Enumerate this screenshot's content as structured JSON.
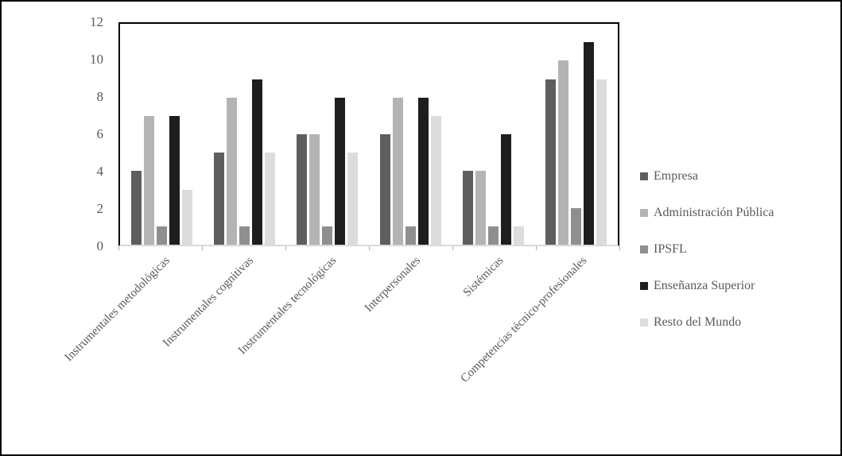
{
  "chart_data": {
    "type": "bar",
    "title": "",
    "categories": [
      "Instrumentales metodológicas",
      "Instrumentales cognitivas",
      "Instrumentales tecnológicas",
      "Interpersonales",
      "Sistémicas",
      "Competencias técnico-profesionales"
    ],
    "series": [
      {
        "name": "Empresa",
        "color": "#5e5e5e",
        "values": [
          4,
          5,
          6,
          6,
          4,
          9
        ]
      },
      {
        "name": "Administración Pública",
        "color": "#b4b4b4",
        "values": [
          7,
          8,
          6,
          8,
          4,
          10
        ]
      },
      {
        "name": "IPSFL",
        "color": "#8f8f8f",
        "values": [
          1,
          1,
          1,
          1,
          1,
          2
        ]
      },
      {
        "name": "Enseñanza Superior",
        "color": "#1e1e1e",
        "values": [
          7,
          9,
          8,
          8,
          6,
          11
        ]
      },
      {
        "name": "Resto del Mundo",
        "color": "#dcdcdc",
        "values": [
          3,
          5,
          5,
          7,
          1,
          9
        ]
      }
    ],
    "xlabel": "",
    "ylabel": "",
    "ylim": [
      0,
      12
    ],
    "yticks": [
      0,
      2,
      4,
      6,
      8,
      10,
      12
    ],
    "grid": false,
    "legend_position": "right",
    "colors": {
      "axis_text": "#595959",
      "plot_frame": "#000000",
      "baseline": "#d9d9d9",
      "tick_mark": "#ababab",
      "background": "#ffffff"
    }
  }
}
